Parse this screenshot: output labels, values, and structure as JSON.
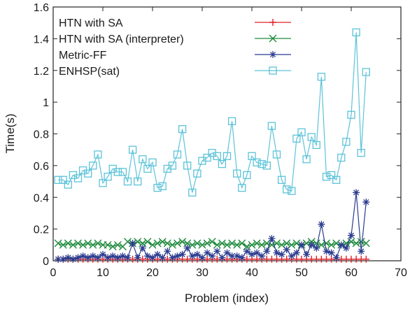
{
  "chart_data": {
    "type": "line",
    "xlabel": "Problem (index)",
    "ylabel": "Time(s)",
    "xlim": [
      0,
      70
    ],
    "ylim": [
      0,
      1.6
    ],
    "xticks": [
      0,
      10,
      20,
      30,
      40,
      50,
      60,
      70
    ],
    "yticks": [
      0,
      0.2,
      0.4,
      0.6,
      0.8,
      1,
      1.2,
      1.4,
      1.6
    ],
    "ytick_labels": [
      "0",
      "0.2",
      "0.4",
      "0.6",
      "0.8",
      "1",
      "1.2",
      "1.4",
      "1.6"
    ],
    "grid": false,
    "legend_position": "top-right",
    "x": [
      1,
      2,
      3,
      4,
      5,
      6,
      7,
      8,
      9,
      10,
      11,
      12,
      13,
      14,
      15,
      16,
      17,
      18,
      19,
      20,
      21,
      22,
      23,
      24,
      25,
      26,
      27,
      28,
      29,
      30,
      31,
      32,
      33,
      34,
      35,
      36,
      37,
      38,
      39,
      40,
      41,
      42,
      43,
      44,
      45,
      46,
      47,
      48,
      49,
      50,
      51,
      52,
      53,
      54,
      55,
      56,
      57,
      58,
      59,
      60,
      61,
      62,
      63
    ],
    "series": [
      {
        "name": "HTN with SA",
        "color": "#e0202a",
        "marker": "plus",
        "values": [
          0.01,
          0.01,
          0.01,
          0.01,
          0.01,
          0.01,
          0.01,
          0.01,
          0.01,
          0.01,
          0.01,
          0.01,
          0.01,
          0.01,
          0.01,
          0.01,
          0.01,
          0.01,
          0.01,
          0.01,
          0.01,
          0.01,
          0.01,
          0.01,
          0.01,
          0.01,
          0.01,
          0.01,
          0.01,
          0.01,
          0.01,
          0.01,
          0.01,
          0.01,
          0.01,
          0.01,
          0.01,
          0.01,
          0.01,
          0.01,
          0.01,
          0.01,
          0.01,
          0.01,
          0.01,
          0.01,
          0.01,
          0.01,
          0.01,
          0.01,
          0.01,
          0.01,
          0.01,
          0.01,
          0.01,
          0.01,
          0.01,
          0.01,
          0.01,
          0.01,
          0.01,
          0.01,
          0.01
        ]
      },
      {
        "name": "HTN with SA (interpreter)",
        "color": "#1e8a3c",
        "marker": "x",
        "values": [
          0.11,
          0.1,
          0.11,
          0.1,
          0.11,
          0.1,
          0.11,
          0.1,
          0.11,
          0.1,
          0.1,
          0.09,
          0.1,
          0.09,
          0.12,
          0.11,
          0.12,
          0.11,
          0.12,
          0.1,
          0.11,
          0.12,
          0.11,
          0.1,
          0.11,
          0.12,
          0.11,
          0.1,
          0.11,
          0.1,
          0.11,
          0.12,
          0.1,
          0.11,
          0.1,
          0.11,
          0.1,
          0.11,
          0.09,
          0.1,
          0.11,
          0.1,
          0.11,
          0.1,
          0.11,
          0.1,
          0.11,
          0.1,
          0.11,
          0.1,
          0.11,
          0.12,
          0.11,
          0.1,
          0.11,
          0.1,
          0.11,
          0.1,
          0.11,
          0.12,
          0.11,
          0.12,
          0.11
        ]
      },
      {
        "name": "Metric-FF",
        "color": "#2b3c8f",
        "marker": "star",
        "values": [
          0.01,
          0.01,
          0.02,
          0.01,
          0.02,
          0.03,
          0.02,
          0.03,
          0.02,
          0.04,
          0.02,
          0.03,
          0.02,
          0.03,
          0.02,
          0.11,
          0.02,
          0.08,
          0.03,
          0.02,
          0.04,
          0.02,
          0.06,
          0.02,
          0.03,
          0.04,
          0.08,
          0.03,
          0.04,
          0.02,
          0.05,
          0.03,
          0.06,
          0.02,
          0.05,
          0.03,
          0.03,
          0.02,
          0.06,
          0.04,
          0.05,
          0.03,
          0.06,
          0.14,
          0.05,
          0.04,
          0.07,
          0.03,
          0.05,
          0.1,
          0.04,
          0.1,
          0.08,
          0.23,
          0.06,
          0.05,
          0.02,
          0.1,
          0.08,
          0.16,
          0.43,
          0.06,
          0.37
        ]
      },
      {
        "name": "ENHSP(sat)",
        "color": "#5cc3d8",
        "marker": "square",
        "values": [
          0.51,
          0.51,
          0.48,
          0.54,
          0.52,
          0.57,
          0.55,
          0.6,
          0.67,
          0.49,
          0.53,
          0.58,
          0.56,
          0.56,
          0.5,
          0.7,
          0.5,
          0.64,
          0.58,
          0.62,
          0.46,
          0.47,
          0.58,
          0.6,
          0.67,
          0.83,
          0.6,
          0.43,
          0.55,
          0.63,
          0.65,
          0.68,
          0.66,
          0.61,
          0.66,
          0.88,
          0.55,
          0.46,
          0.54,
          0.66,
          0.62,
          0.61,
          0.6,
          0.85,
          0.67,
          0.51,
          0.45,
          0.44,
          0.77,
          0.81,
          0.64,
          0.78,
          0.73,
          1.16,
          0.53,
          0.54,
          0.51,
          0.65,
          0.75,
          0.92,
          1.44,
          0.68,
          1.19
        ]
      }
    ]
  }
}
